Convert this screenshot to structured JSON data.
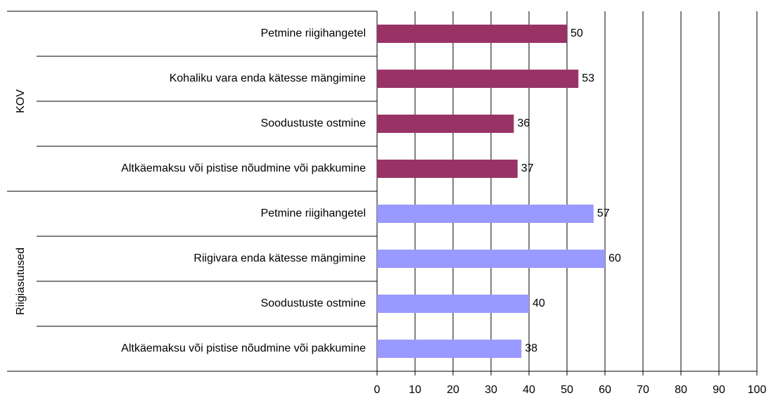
{
  "chart_data": {
    "type": "bar",
    "orientation": "horizontal",
    "groups": [
      {
        "name": "KOV",
        "color": "#993366",
        "categories": [
          "Petmine riigihangetel",
          "Kohaliku vara enda kätesse mängimine",
          "Soodustuste ostmine",
          "Altkäemaksu või pistise nõudmine või pakkumine"
        ],
        "values": [
          50,
          53,
          36,
          37
        ]
      },
      {
        "name": "Riigiasutused",
        "color": "#9999ff",
        "categories": [
          "Petmine riigihangetel",
          "Riigivara enda kätesse mängimine",
          "Soodustuste ostmine",
          "Altkäemaksu või pistise nõudmine või pakkumine"
        ],
        "values": [
          57,
          60,
          40,
          38
        ]
      }
    ],
    "xlim": [
      0,
      100
    ],
    "xticks": [
      0,
      10,
      20,
      30,
      40,
      50,
      60,
      70,
      80,
      90,
      100
    ],
    "grid": true
  }
}
